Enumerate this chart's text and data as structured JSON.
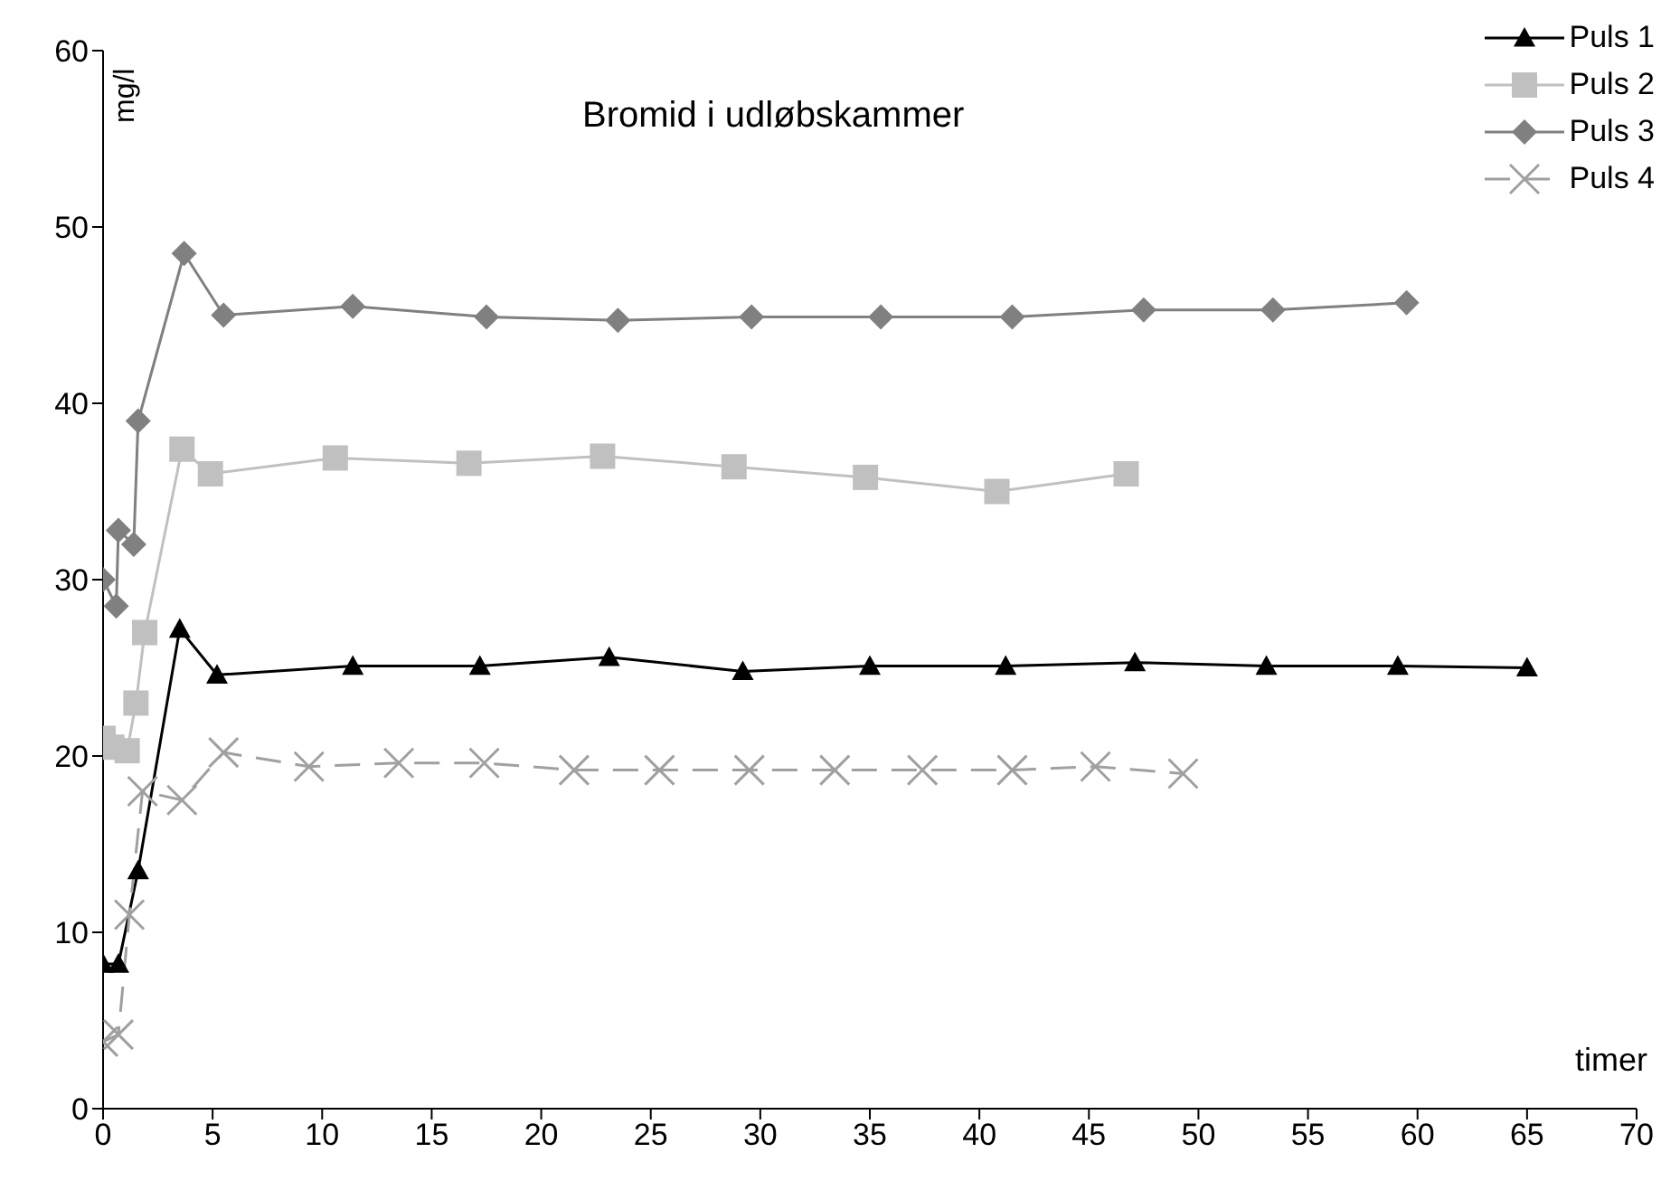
{
  "chart_data": {
    "type": "line",
    "title": "Bromid i udløbskammer",
    "xlabel": "timer",
    "ylabel": "mg/l",
    "xlim": [
      0,
      70
    ],
    "xticks": [
      0,
      5,
      10,
      15,
      20,
      25,
      30,
      35,
      40,
      45,
      50,
      55,
      60,
      65,
      70
    ],
    "ylim": [
      0,
      60
    ],
    "yticks": [
      0,
      10,
      20,
      30,
      40,
      50,
      60
    ],
    "grid": false,
    "legend": "top right",
    "series": [
      {
        "name": "Puls 1",
        "color": "#000000",
        "marker": "triangle",
        "line_style": "solid",
        "x": [
          0,
          0.7,
          1.6,
          3.5,
          5.2,
          11.4,
          17.2,
          23.1,
          29.2,
          35.0,
          41.2,
          47.1,
          53.1,
          59.1,
          65.0
        ],
        "values": [
          8.2,
          8.2,
          13.5,
          27.2,
          24.6,
          25.1,
          25.1,
          25.6,
          24.8,
          25.1,
          25.1,
          25.3,
          25.1,
          25.1,
          25.0
        ]
      },
      {
        "name": "Puls 2",
        "color": "#c0c0c0",
        "marker": "square",
        "line_style": "solid",
        "x": [
          0,
          0.4,
          1.1,
          1.5,
          1.9,
          3.6,
          4.9,
          10.6,
          16.7,
          22.8,
          28.8,
          34.8,
          40.8,
          46.7
        ],
        "values": [
          21,
          20.5,
          20.3,
          23,
          27,
          37.4,
          36,
          36.9,
          36.6,
          37,
          36.4,
          35.8,
          35,
          36
        ]
      },
      {
        "name": "Puls 3",
        "color": "#808080",
        "marker": "diamond",
        "line_style": "solid",
        "x": [
          0,
          0.6,
          0.7,
          1.4,
          1.6,
          3.7,
          5.5,
          11.4,
          17.5,
          23.5,
          29.6,
          35.5,
          41.5,
          47.5,
          53.4,
          59.5
        ],
        "values": [
          30,
          28.5,
          32.8,
          32,
          39,
          48.5,
          45,
          45.5,
          44.9,
          44.7,
          44.9,
          44.9,
          44.9,
          45.3,
          45.3,
          45.7
        ]
      },
      {
        "name": "Puls 4",
        "color": "#a0a0a0",
        "marker": "cross",
        "line_style": "dashed",
        "x": [
          0,
          0.7,
          1.2,
          1.8,
          3.6,
          5.5,
          9.4,
          13.5,
          17.4,
          21.5,
          25.4,
          29.5,
          33.4,
          37.4,
          41.5,
          45.3,
          49.3
        ],
        "values": [
          3.8,
          4.2,
          11,
          18,
          17.5,
          20.2,
          19.4,
          19.6,
          19.6,
          19.2,
          19.2,
          19.2,
          19.2,
          19.2,
          19.2,
          19.4,
          19
        ]
      }
    ]
  }
}
